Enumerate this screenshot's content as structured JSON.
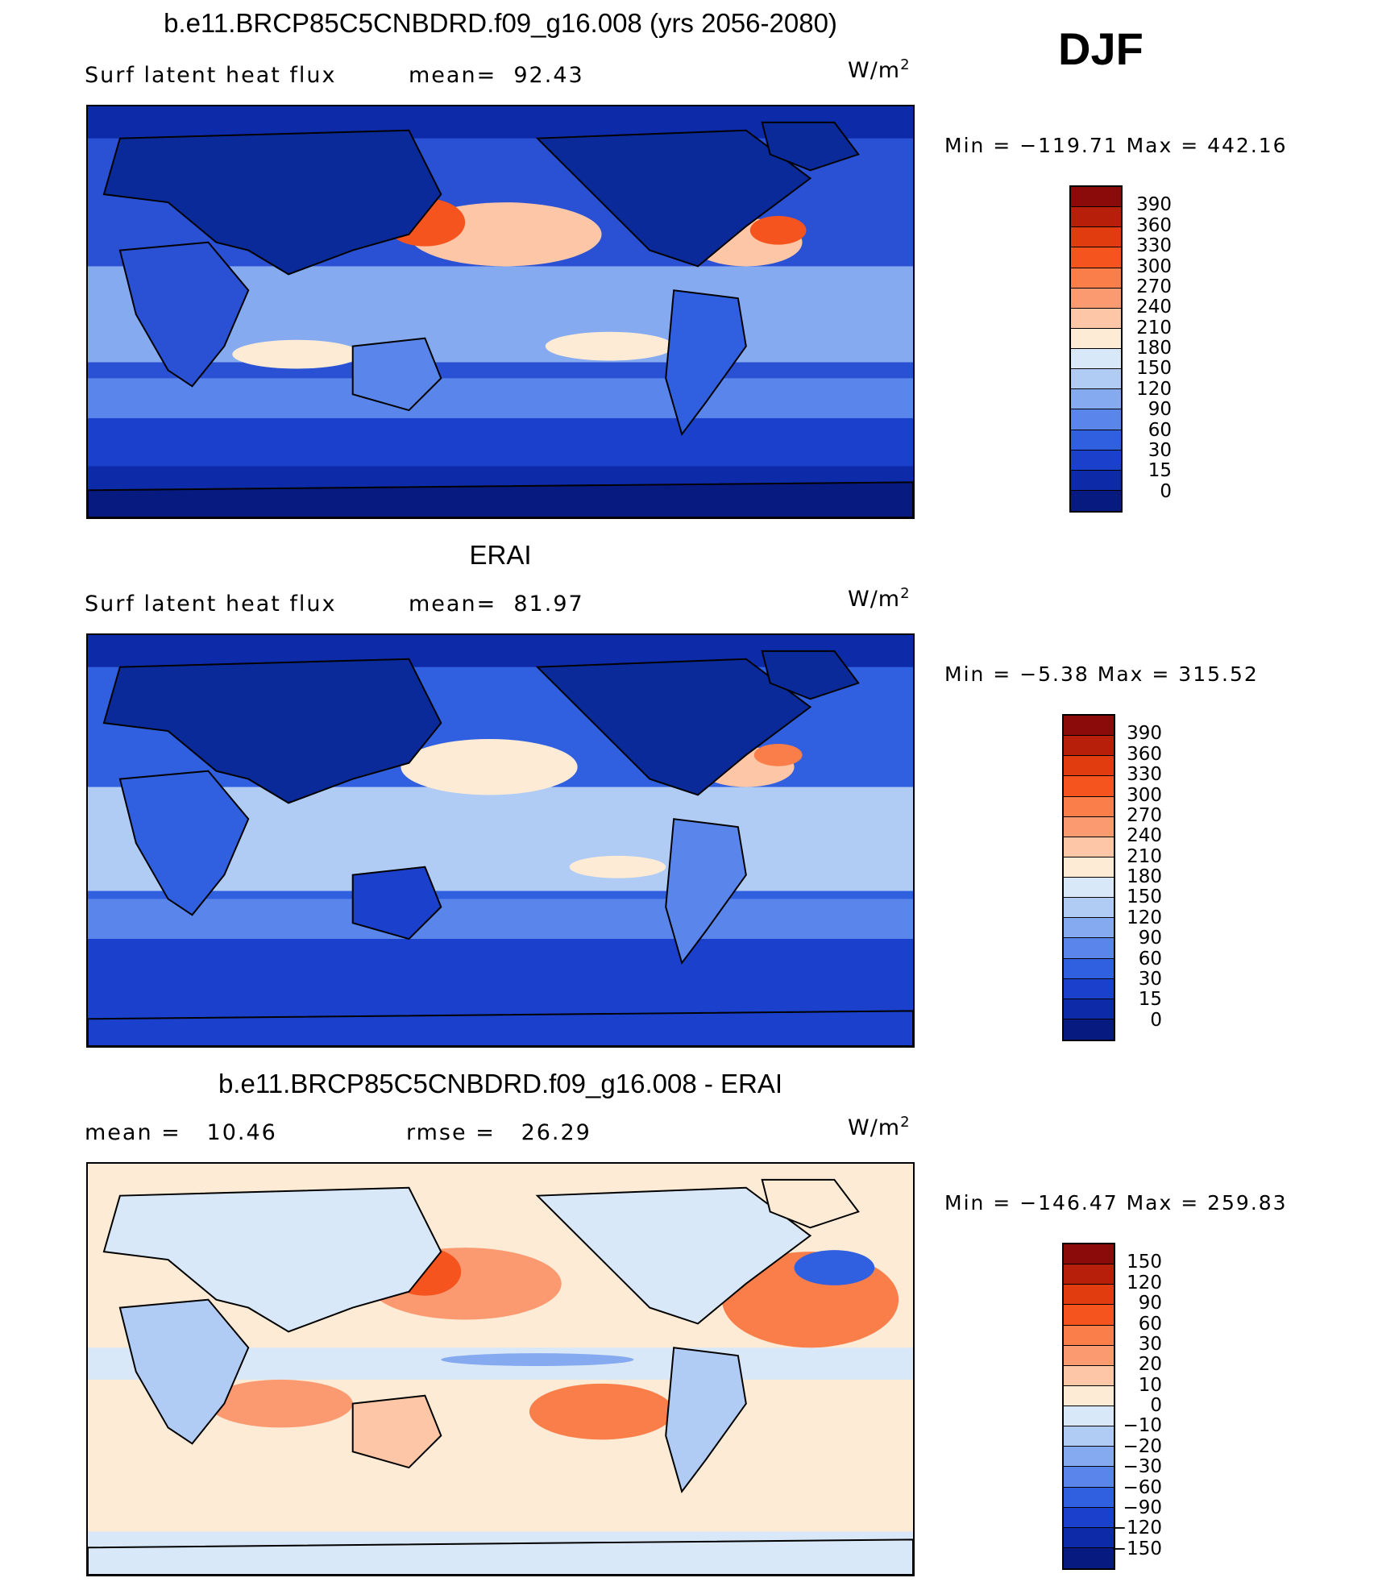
{
  "season": "DJF",
  "panels": [
    {
      "title": "b.e11.BRCP85C5CNBDRD.f09_g16.008 (yrs 2056-2080)",
      "left_label": "Surf latent heat flux",
      "mid_label": "mean=",
      "mid_value": "92.43",
      "units": "W/m",
      "units_sup": "2",
      "minmax": "Min = −119.71 Max = 442.16",
      "colorbar": {
        "labels": [
          "390",
          "360",
          "330",
          "300",
          "270",
          "240",
          "210",
          "180",
          "150",
          "120",
          "90",
          "60",
          "30",
          "15",
          "0"
        ],
        "colors": [
          "#8b0a0a",
          "#b81f0a",
          "#e03c10",
          "#f5541e",
          "#fa7e4a",
          "#fb9a70",
          "#fdc6a6",
          "#fdebd6",
          "#d8e8f8",
          "#b0ccf4",
          "#86aaf0",
          "#5a85ea",
          "#3060e0",
          "#1a40cc",
          "#0d2aa8",
          "#061a80"
        ]
      },
      "map_palette": {
        "background": "#1f3fc8",
        "land": "#0a2a9a"
      }
    },
    {
      "title": "ERAI",
      "left_label": "Surf latent heat flux",
      "mid_label": "mean=",
      "mid_value": "81.97",
      "units": "W/m",
      "units_sup": "2",
      "minmax": "Min =   −5.38 Max = 315.52",
      "colorbar": {
        "labels": [
          "390",
          "360",
          "330",
          "300",
          "270",
          "240",
          "210",
          "180",
          "150",
          "120",
          "90",
          "60",
          "30",
          "15",
          "0"
        ],
        "colors": [
          "#8b0a0a",
          "#b81f0a",
          "#e03c10",
          "#f5541e",
          "#fa7e4a",
          "#fb9a70",
          "#fdc6a6",
          "#fdebd6",
          "#d8e8f8",
          "#b0ccf4",
          "#86aaf0",
          "#5a85ea",
          "#3060e0",
          "#1a40cc",
          "#0d2aa8",
          "#061a80"
        ]
      },
      "map_palette": {
        "background": "#2448d0",
        "land": "#0a2a9a"
      }
    },
    {
      "title": "b.e11.BRCP85C5CNBDRD.f09_g16.008 - ERAI",
      "left_label": "mean =",
      "left_value": "10.46",
      "mid_label": "rmse =",
      "mid_value": "26.29",
      "units": "W/m",
      "units_sup": "2",
      "minmax": "Min = −146.47 Max = 259.83",
      "colorbar": {
        "labels": [
          "150",
          "120",
          "90",
          "60",
          "30",
          "20",
          "10",
          "0",
          "−10",
          "−20",
          "−30",
          "−60",
          "−90",
          "−120",
          "−150"
        ],
        "colors": [
          "#8b0a0a",
          "#b81f0a",
          "#e03c10",
          "#f5541e",
          "#fa7e4a",
          "#fb9a70",
          "#fdc6a6",
          "#fdebd6",
          "#d8e8f8",
          "#b0ccf4",
          "#86aaf0",
          "#5a85ea",
          "#3060e0",
          "#1a40cc",
          "#0d2aa8",
          "#061a80"
        ]
      },
      "map_palette": {
        "background": "#fbe3cf",
        "land": "#d8e8f8"
      }
    }
  ]
}
